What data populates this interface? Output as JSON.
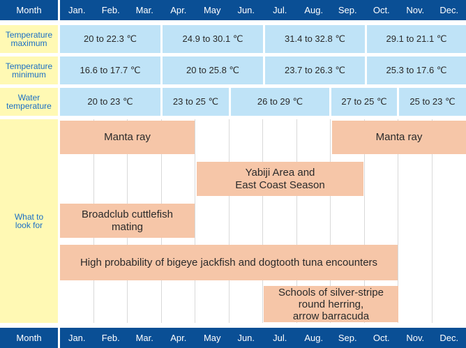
{
  "header_label": "Month",
  "months": [
    "Jan.",
    "Feb.",
    "Mar.",
    "Apr.",
    "May",
    "Jun.",
    "Jul.",
    "Aug.",
    "Sep.",
    "Oct.",
    "Nov.",
    "Dec."
  ],
  "rows": {
    "temp_max": {
      "label_line1": "Temperature",
      "label_line2": "maximum",
      "ranges": [
        "20 to 22.3 ℃",
        "24.9 to 30.1 ℃",
        "31.4 to 32.8 ℃",
        "29.1 to 21.1 ℃"
      ]
    },
    "temp_min": {
      "label_line1": "Temperature",
      "label_line2": "minimum",
      "ranges": [
        "16.6 to 17.7 ℃",
        "20 to 25.8 ℃",
        "23.7 to 26.3 ℃",
        "25.3 to 17.6 ℃"
      ]
    },
    "water_temp": {
      "label_line1": "Water",
      "label_line2": "temperature",
      "ranges": [
        "20 to 23 ℃",
        "23 to 25 ℃",
        "26 to 29 ℃",
        "27 to 25 ℃",
        "25 to 23 ℃"
      ]
    },
    "look_for": {
      "label_line1": "What to",
      "label_line2": "look for"
    }
  },
  "events": {
    "manta_early": "Manta ray",
    "manta_late": "Manta ray",
    "yabiji_line1": "Yabiji Area and",
    "yabiji_line2": "East Coast Season",
    "cuttlefish_line1": "Broadclub cuttlefish",
    "cuttlefish_line2": "mating",
    "jackfish": "High probability of bigeye jackfish and dogtooth tuna encounters",
    "herring_line1": "Schools of silver-stripe",
    "herring_line2": "round herring,",
    "herring_line3": "arrow barracuda"
  },
  "colors": {
    "month_bar": "#0a4f95",
    "label_column": "#fff9b4",
    "label_text": "#1a6fc4",
    "range_fill": "#bfe3f7",
    "event_fill": "#f6c6a8"
  }
}
